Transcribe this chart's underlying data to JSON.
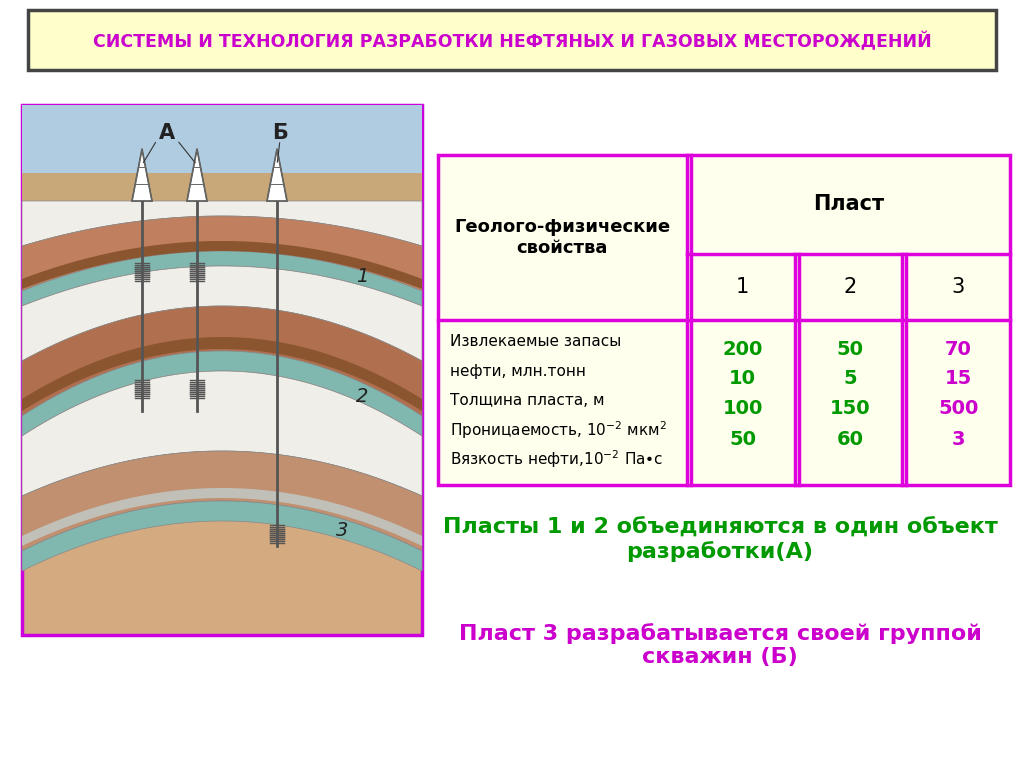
{
  "title": "СИСТЕМЫ И ТЕХНОЛОГИЯ РАЗРАБОТКИ НЕФТЯНЫХ И ГАЗОВЫХ МЕСТОРОЖДЕНИЙ",
  "title_color": "#CC00CC",
  "title_bg": "#FFFFCC",
  "title_border": "#444444",
  "table_bg": "#FFFFEE",
  "table_border": "#DD00DD",
  "col_header": "Пласт",
  "row_header": "Геолого-физические\nсвойства",
  "col_nums": [
    "1",
    "2",
    "3"
  ],
  "row_labels_line1": "Извлекаемые запасы",
  "row_labels_line2": "нефти, млн.тонн",
  "row_labels_line3": "Толщина пласта, м",
  "row_labels_line4": "Проницаемость, 10⁻² мкм²",
  "row_labels_line5": "Вязкость нефти,10⁻² Па•с",
  "col1_values": [
    "200",
    "10",
    "100",
    "50"
  ],
  "col2_values": [
    "50",
    "5",
    "150",
    "60"
  ],
  "col3_values": [
    "70",
    "15",
    "500",
    "3"
  ],
  "col1_color": "#009900",
  "col2_color": "#009900",
  "col3_color": "#CC00CC",
  "text1": "Пласты 1 и 2 объединяются в один объект\nразработки(А)",
  "text1_color": "#009900",
  "text2": "Пласт 3 разрабатывается своей группой\nскважин (Б)",
  "text2_color": "#CC00CC",
  "bg_color": "#FFFFFF",
  "left_panel_bg": "#D4AA80",
  "sky_color": "#B0CCE0",
  "layer1_color": "#C08060",
  "layer2_color": "#B07050",
  "layer3_color": "#C09070",
  "white_layer": "#F0EEE8",
  "teal_layer": "#80B8B0",
  "gray_layer": "#C0C0B8"
}
